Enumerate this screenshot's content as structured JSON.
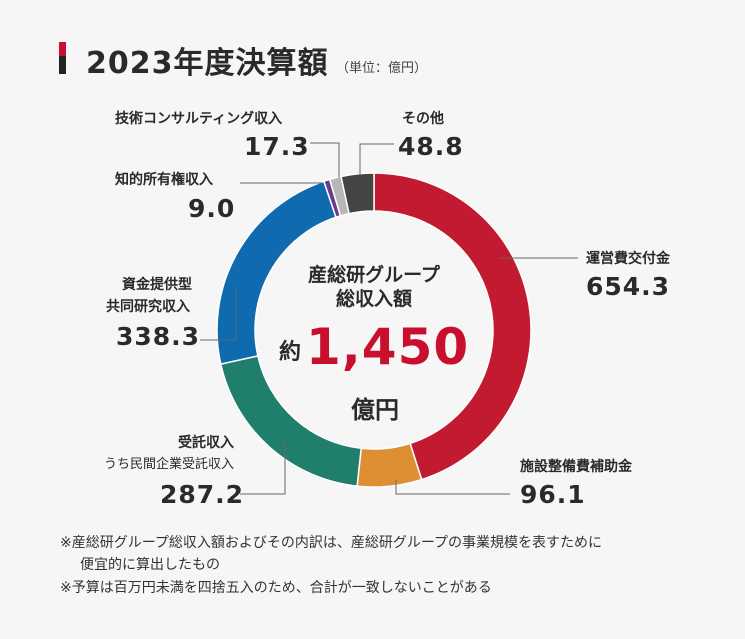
{
  "header": {
    "title": "2023年度決算額",
    "unit": "（単位：億円）"
  },
  "center": {
    "line1": "産総研グループ",
    "line2": "総収入額",
    "approx": "約",
    "total": "1,450",
    "unit": "億円"
  },
  "colors": {
    "accent_red": "#c8102e",
    "operating": "#c21a30",
    "facility": "#de8f34",
    "contract": "#1f7f6c",
    "joint": "#0f6ab0",
    "ip": "#6a3a8f",
    "consulting": "#b7b7b7",
    "other": "#444444"
  },
  "chart_data": {
    "type": "pie",
    "donut": true,
    "title": "2023年度決算額",
    "unit": "億円",
    "total_label": "約1,450",
    "slices": [
      {
        "label": "運営費交付金",
        "value": 654.3,
        "value_text": "654.3",
        "color": "#c21a30"
      },
      {
        "label": "施設整備費補助金",
        "value": 96.1,
        "value_text": "96.1",
        "color": "#de8f34"
      },
      {
        "label": "受託収入",
        "sublabel": "うち民間企業受託収入",
        "value": 287.2,
        "value_text": "287.2",
        "color": "#1f7f6c"
      },
      {
        "label": "資金提供型",
        "label2": "共同研究収入",
        "value": 338.3,
        "value_text": "338.3",
        "color": "#0f6ab0"
      },
      {
        "label": "知的所有権収入",
        "value": 9.0,
        "value_text": "9.0",
        "color": "#6a3a8f"
      },
      {
        "label": "技術コンサルティング収入",
        "value": 17.3,
        "value_text": "17.3",
        "color": "#b7b7b7"
      },
      {
        "label": "その他",
        "value": 48.8,
        "value_text": "48.8",
        "color": "#444444"
      }
    ]
  },
  "notes": [
    "※産総研グループ総収入額およびその内訳は、産総研グループの事業規模を表すために",
    "便宜的に算出したもの",
    "※予算は百万円未満を四捨五入のため、合計が一致しないことがある"
  ]
}
